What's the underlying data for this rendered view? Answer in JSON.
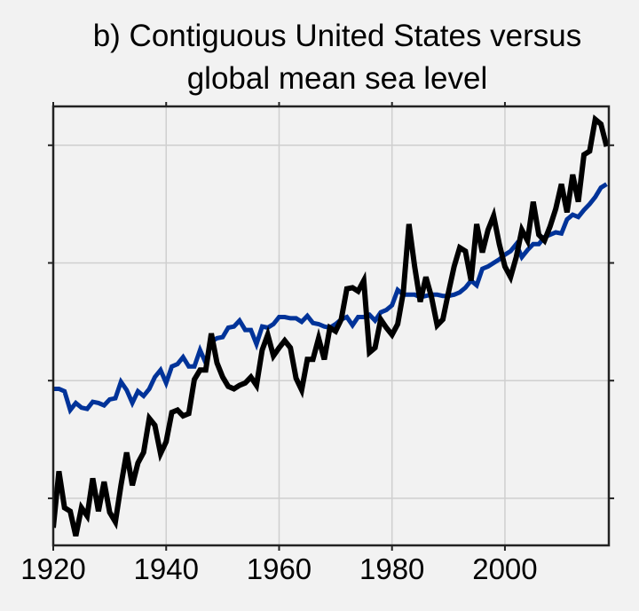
{
  "chart_data": {
    "type": "line",
    "title": [
      "b) Contiguous United States versus",
      "global mean sea level"
    ],
    "xlabel": "",
    "ylabel": "",
    "xlim": [
      1920,
      2018.4
    ],
    "ylim": [
      -0.4,
      3.33
    ],
    "xticks": [
      1920,
      1940,
      1960,
      1980,
      2000
    ],
    "yticks": [
      0,
      1,
      2,
      3
    ],
    "ytick_labels_shown": false,
    "grid": true,
    "x": [
      1920,
      1921,
      1922,
      1923,
      1924,
      1925,
      1926,
      1927,
      1928,
      1929,
      1930,
      1931,
      1932,
      1933,
      1934,
      1935,
      1936,
      1937,
      1938,
      1939,
      1940,
      1941,
      1942,
      1943,
      1944,
      1945,
      1946,
      1947,
      1948,
      1949,
      1950,
      1951,
      1952,
      1953,
      1954,
      1955,
      1956,
      1957,
      1958,
      1959,
      1960,
      1961,
      1962,
      1963,
      1964,
      1965,
      1966,
      1967,
      1968,
      1969,
      1970,
      1971,
      1972,
      1973,
      1974,
      1975,
      1976,
      1977,
      1978,
      1979,
      1980,
      1981,
      1982,
      1983,
      1984,
      1985,
      1986,
      1987,
      1988,
      1989,
      1990,
      1991,
      1992,
      1993,
      1994,
      1995,
      1996,
      1997,
      1998,
      1999,
      2000,
      2001,
      2002,
      2003,
      2004,
      2005,
      2006,
      2007,
      2008,
      2009,
      2010,
      2011,
      2012,
      2013,
      2014,
      2015,
      2016,
      2017,
      2018
    ],
    "series": [
      {
        "name": "Contiguous United States",
        "color": "#000000",
        "values": [
          -0.25,
          0.23,
          -0.08,
          -0.11,
          -0.32,
          -0.08,
          -0.15,
          0.17,
          -0.11,
          0.14,
          -0.12,
          -0.2,
          0.11,
          0.39,
          0.11,
          0.3,
          0.39,
          0.68,
          0.62,
          0.38,
          0.48,
          0.73,
          0.75,
          0.7,
          0.72,
          1.01,
          1.09,
          1.09,
          1.4,
          1.15,
          1.03,
          0.95,
          0.93,
          0.96,
          0.98,
          1.03,
          0.96,
          1.26,
          1.39,
          1.21,
          1.28,
          1.34,
          1.28,
          1.02,
          0.92,
          1.18,
          1.18,
          1.36,
          1.18,
          1.45,
          1.42,
          1.52,
          1.78,
          1.79,
          1.76,
          1.85,
          1.24,
          1.28,
          1.52,
          1.45,
          1.39,
          1.48,
          1.75,
          2.33,
          1.97,
          1.67,
          1.88,
          1.71,
          1.47,
          1.52,
          1.75,
          1.97,
          2.13,
          2.1,
          1.85,
          2.33,
          2.09,
          2.28,
          2.4,
          2.16,
          1.97,
          1.88,
          2.05,
          2.28,
          2.19,
          2.52,
          2.24,
          2.19,
          2.31,
          2.46,
          2.67,
          2.43,
          2.75,
          2.52,
          2.92,
          2.95,
          3.22,
          3.18,
          2.99
        ]
      },
      {
        "name": "Global mean sea level",
        "color": "#003399",
        "values": [
          0.93,
          0.93,
          0.91,
          0.75,
          0.81,
          0.77,
          0.76,
          0.82,
          0.81,
          0.79,
          0.84,
          0.85,
          0.99,
          0.92,
          0.81,
          0.91,
          0.87,
          0.93,
          1.03,
          1.09,
          0.98,
          1.12,
          1.14,
          1.2,
          1.12,
          1.12,
          1.26,
          1.15,
          1.33,
          1.36,
          1.37,
          1.45,
          1.46,
          1.51,
          1.43,
          1.43,
          1.31,
          1.46,
          1.45,
          1.48,
          1.54,
          1.54,
          1.53,
          1.53,
          1.5,
          1.55,
          1.49,
          1.48,
          1.46,
          1.45,
          1.48,
          1.52,
          1.54,
          1.47,
          1.54,
          1.54,
          1.56,
          1.51,
          1.58,
          1.6,
          1.64,
          1.77,
          1.73,
          1.73,
          1.73,
          1.71,
          1.72,
          1.73,
          1.73,
          1.72,
          1.72,
          1.73,
          1.75,
          1.79,
          1.85,
          1.81,
          1.95,
          1.97,
          2.0,
          2.03,
          2.07,
          2.1,
          2.16,
          2.05,
          2.11,
          2.16,
          2.16,
          2.22,
          2.24,
          2.26,
          2.25,
          2.37,
          2.41,
          2.39,
          2.45,
          2.5,
          2.56,
          2.64,
          2.67
        ]
      }
    ]
  }
}
